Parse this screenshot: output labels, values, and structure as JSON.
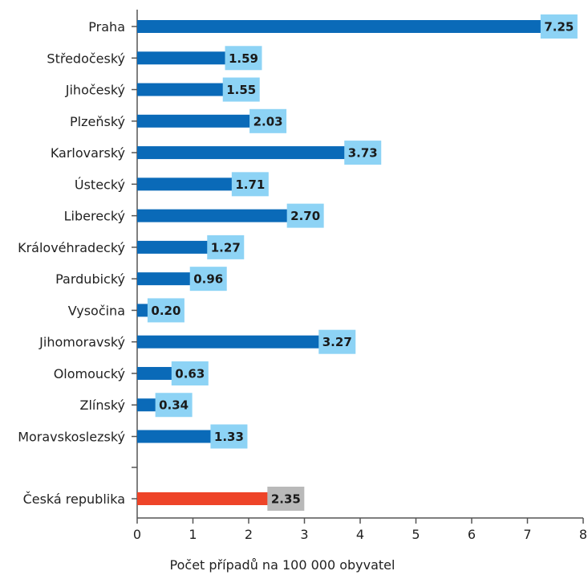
{
  "chart_data": {
    "type": "bar",
    "orientation": "horizontal",
    "categories": [
      "Praha",
      "Středočeský",
      "Jihočeský",
      "Plzeňský",
      "Karlovarský",
      "Ústecký",
      "Liberecký",
      "Královéhradecký",
      "Pardubický",
      "Vysočina",
      "Jihomoravský",
      "Olomoucký",
      "Zlínský",
      "Moravskoslezský"
    ],
    "values": [
      7.25,
      1.59,
      1.55,
      2.03,
      3.73,
      1.71,
      2.7,
      1.27,
      0.96,
      0.2,
      3.27,
      0.63,
      0.34,
      1.33
    ],
    "value_labels": [
      "7.25",
      "1.59",
      "1.55",
      "2.03",
      "3.73",
      "1.71",
      "2.70",
      "1.27",
      "0.96",
      "0.20",
      "3.27",
      "0.63",
      "0.34",
      "1.33"
    ],
    "total": {
      "category": "Česká republika",
      "value": 2.35,
      "value_label": "2.35"
    },
    "xlabel": "Počet případů na 100 000 obyvatel",
    "xlim": [
      0,
      8
    ],
    "xticks": [
      "0",
      "1",
      "2",
      "3",
      "4",
      "5",
      "6",
      "7",
      "8"
    ],
    "grid": false,
    "legend": "none",
    "colors": {
      "bar": "#0a6ab8",
      "bar_label_bg": "#8dd3f5",
      "total_bar": "#ee4428",
      "total_label_bg": "#b9b9b9",
      "axis": "#555555"
    }
  }
}
